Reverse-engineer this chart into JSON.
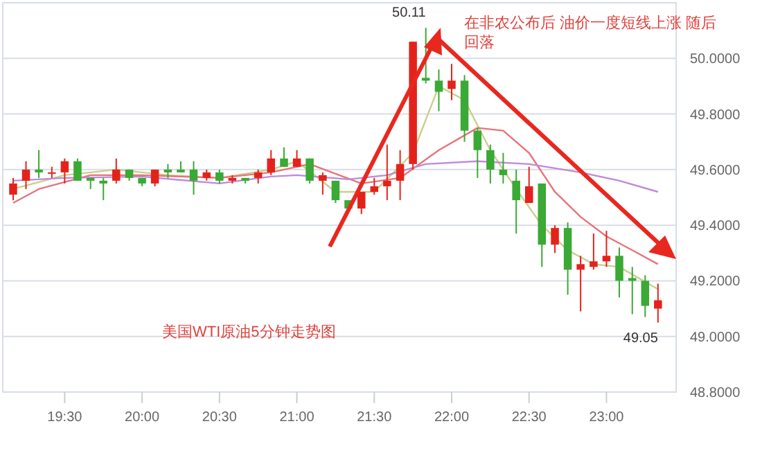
{
  "chart_data": {
    "type": "candlestick",
    "title": "美国WTI原油5分钟走势图",
    "x": [
      19.167,
      19.25,
      19.333,
      19.417,
      19.5,
      19.583,
      19.667,
      19.75,
      19.833,
      19.917,
      20,
      20.083,
      20.167,
      20.25,
      20.333,
      20.417,
      20.5,
      20.583,
      20.667,
      20.75,
      20.833,
      20.917,
      21,
      21.083,
      21.167,
      21.25,
      21.333,
      21.417,
      21.5,
      21.583,
      21.667,
      21.75,
      21.833,
      21.917,
      22,
      22.083,
      22.167,
      22.25,
      22.333,
      22.417,
      22.5,
      22.583,
      22.667,
      22.75,
      22.833,
      22.917,
      23,
      23.083,
      23.167,
      23.25,
      23.333
    ],
    "ohlc": [
      [
        49.51,
        49.57,
        49.49,
        49.55
      ],
      [
        49.56,
        49.63,
        49.53,
        49.6
      ],
      [
        49.6,
        49.67,
        49.57,
        49.59
      ],
      [
        49.59,
        49.61,
        49.57,
        49.59
      ],
      [
        49.59,
        49.64,
        49.55,
        49.63
      ],
      [
        49.63,
        49.64,
        49.56,
        49.56
      ],
      [
        49.57,
        49.57,
        49.53,
        49.56
      ],
      [
        49.56,
        49.57,
        49.49,
        49.55
      ],
      [
        49.56,
        49.64,
        49.55,
        49.6
      ],
      [
        49.6,
        49.6,
        49.56,
        49.57
      ],
      [
        49.57,
        49.57,
        49.54,
        49.55
      ],
      [
        49.55,
        49.6,
        49.54,
        49.6
      ],
      [
        49.6,
        49.62,
        49.57,
        49.59
      ],
      [
        49.6,
        49.63,
        49.59,
        49.59
      ],
      [
        49.6,
        49.63,
        49.51,
        49.56
      ],
      [
        49.57,
        49.6,
        49.56,
        49.59
      ],
      [
        49.59,
        49.6,
        49.55,
        49.56
      ],
      [
        49.56,
        49.58,
        49.55,
        49.57
      ],
      [
        49.57,
        49.57,
        49.55,
        49.56
      ],
      [
        49.57,
        49.6,
        49.55,
        49.59
      ],
      [
        49.59,
        49.67,
        49.58,
        49.64
      ],
      [
        49.64,
        49.68,
        49.61,
        49.61
      ],
      [
        49.61,
        49.67,
        49.61,
        49.64
      ],
      [
        49.64,
        49.64,
        49.55,
        49.56
      ],
      [
        49.56,
        49.59,
        49.51,
        49.58
      ],
      [
        49.56,
        49.56,
        49.48,
        49.49
      ],
      [
        49.49,
        49.49,
        49.45,
        49.46
      ],
      [
        49.46,
        49.52,
        49.44,
        49.52
      ],
      [
        49.52,
        49.57,
        49.51,
        49.54
      ],
      [
        49.54,
        49.69,
        49.49,
        49.56
      ],
      [
        49.56,
        49.67,
        49.49,
        49.62
      ],
      [
        49.62,
        50.06,
        49.6,
        50.06
      ],
      [
        49.93,
        50.11,
        49.91,
        49.92
      ],
      [
        49.92,
        49.96,
        49.81,
        49.88
      ],
      [
        49.89,
        49.98,
        49.85,
        49.92
      ],
      [
        49.92,
        49.94,
        49.7,
        49.74
      ],
      [
        49.74,
        49.75,
        49.57,
        49.67
      ],
      [
        49.67,
        49.69,
        49.55,
        49.6
      ],
      [
        49.6,
        49.66,
        49.55,
        49.58
      ],
      [
        49.56,
        49.6,
        49.37,
        49.49
      ],
      [
        49.48,
        49.61,
        49.48,
        49.54
      ],
      [
        49.55,
        49.55,
        49.25,
        49.33
      ],
      [
        49.33,
        49.4,
        49.3,
        49.39
      ],
      [
        49.39,
        49.41,
        49.15,
        49.24
      ],
      [
        49.24,
        49.29,
        49.09,
        49.26
      ],
      [
        49.25,
        49.37,
        49.24,
        49.27
      ],
      [
        49.27,
        49.38,
        49.25,
        49.29
      ],
      [
        49.29,
        49.32,
        49.14,
        49.2
      ],
      [
        49.21,
        49.25,
        49.08,
        49.2
      ],
      [
        49.2,
        49.22,
        49.07,
        49.11
      ],
      [
        49.1,
        49.19,
        49.05,
        49.13
      ]
    ],
    "series": [
      {
        "type": "line",
        "color": "#c9cf8a",
        "x": [
          19.167,
          19.5,
          19.833,
          20.167,
          20.5,
          20.833,
          21,
          21.25,
          21.5,
          21.75,
          21.917,
          22.083,
          22.25,
          22.417,
          22.583,
          22.75,
          22.917,
          23.083,
          23.333
        ],
        "values": [
          49.53,
          49.58,
          49.6,
          49.58,
          49.57,
          49.6,
          49.63,
          49.52,
          49.52,
          49.66,
          49.9,
          49.85,
          49.67,
          49.53,
          49.4,
          49.31,
          49.26,
          49.25,
          49.17
        ]
      },
      {
        "type": "line",
        "color": "#e8737a",
        "x": [
          19.167,
          19.333,
          19.667,
          20,
          20.5,
          20.833,
          21.083,
          21.417,
          21.667,
          21.917,
          22.167,
          22.333,
          22.5,
          22.667,
          22.833,
          23,
          23.167,
          23.333
        ],
        "values": [
          49.48,
          49.53,
          49.58,
          49.58,
          49.57,
          49.59,
          49.62,
          49.55,
          49.57,
          49.67,
          49.75,
          49.74,
          49.66,
          49.52,
          49.43,
          49.36,
          49.31,
          49.26
        ]
      },
      {
        "type": "line",
        "color": "#c08ad6",
        "x": [
          19.167,
          19.5,
          20,
          20.5,
          20.833,
          21,
          21.333,
          21.583,
          21.833,
          22.167,
          22.5,
          22.833,
          23.083,
          23.333
        ],
        "values": [
          49.56,
          49.57,
          49.575,
          49.55,
          49.575,
          49.58,
          49.565,
          49.58,
          49.62,
          49.63,
          49.62,
          49.59,
          49.56,
          49.52
        ]
      }
    ],
    "xlim": [
      19.1,
      23.45
    ],
    "ylim": [
      48.8,
      50.2
    ],
    "xticks": [
      {
        "value": 19.5,
        "label": "19:30"
      },
      {
        "value": 20,
        "label": "20:00"
      },
      {
        "value": 20.5,
        "label": "20:30"
      },
      {
        "value": 21,
        "label": "21:00"
      },
      {
        "value": 21.5,
        "label": "21:30"
      },
      {
        "value": 22,
        "label": "22:00"
      },
      {
        "value": 22.5,
        "label": "22:30"
      },
      {
        "value": 23,
        "label": "23:00"
      }
    ],
    "yticks": [
      {
        "value": 48.8,
        "label": "48.8000"
      },
      {
        "value": 49,
        "label": "49.0000"
      },
      {
        "value": 49.2,
        "label": "49.2000"
      },
      {
        "value": 49.4,
        "label": "49.4000"
      },
      {
        "value": 49.6,
        "label": "49.6000"
      },
      {
        "value": 49.8,
        "label": "49.8000"
      },
      {
        "value": 50,
        "label": "50.0000"
      }
    ],
    "grid": "y",
    "annotations": [
      {
        "text": "50.11",
        "x": 21.833,
        "y": 50.11
      },
      {
        "text": "49.05",
        "x": 23.333,
        "y": 49.05
      },
      "在非农公布后 油价一度短线上涨 随后回落"
    ]
  }
}
